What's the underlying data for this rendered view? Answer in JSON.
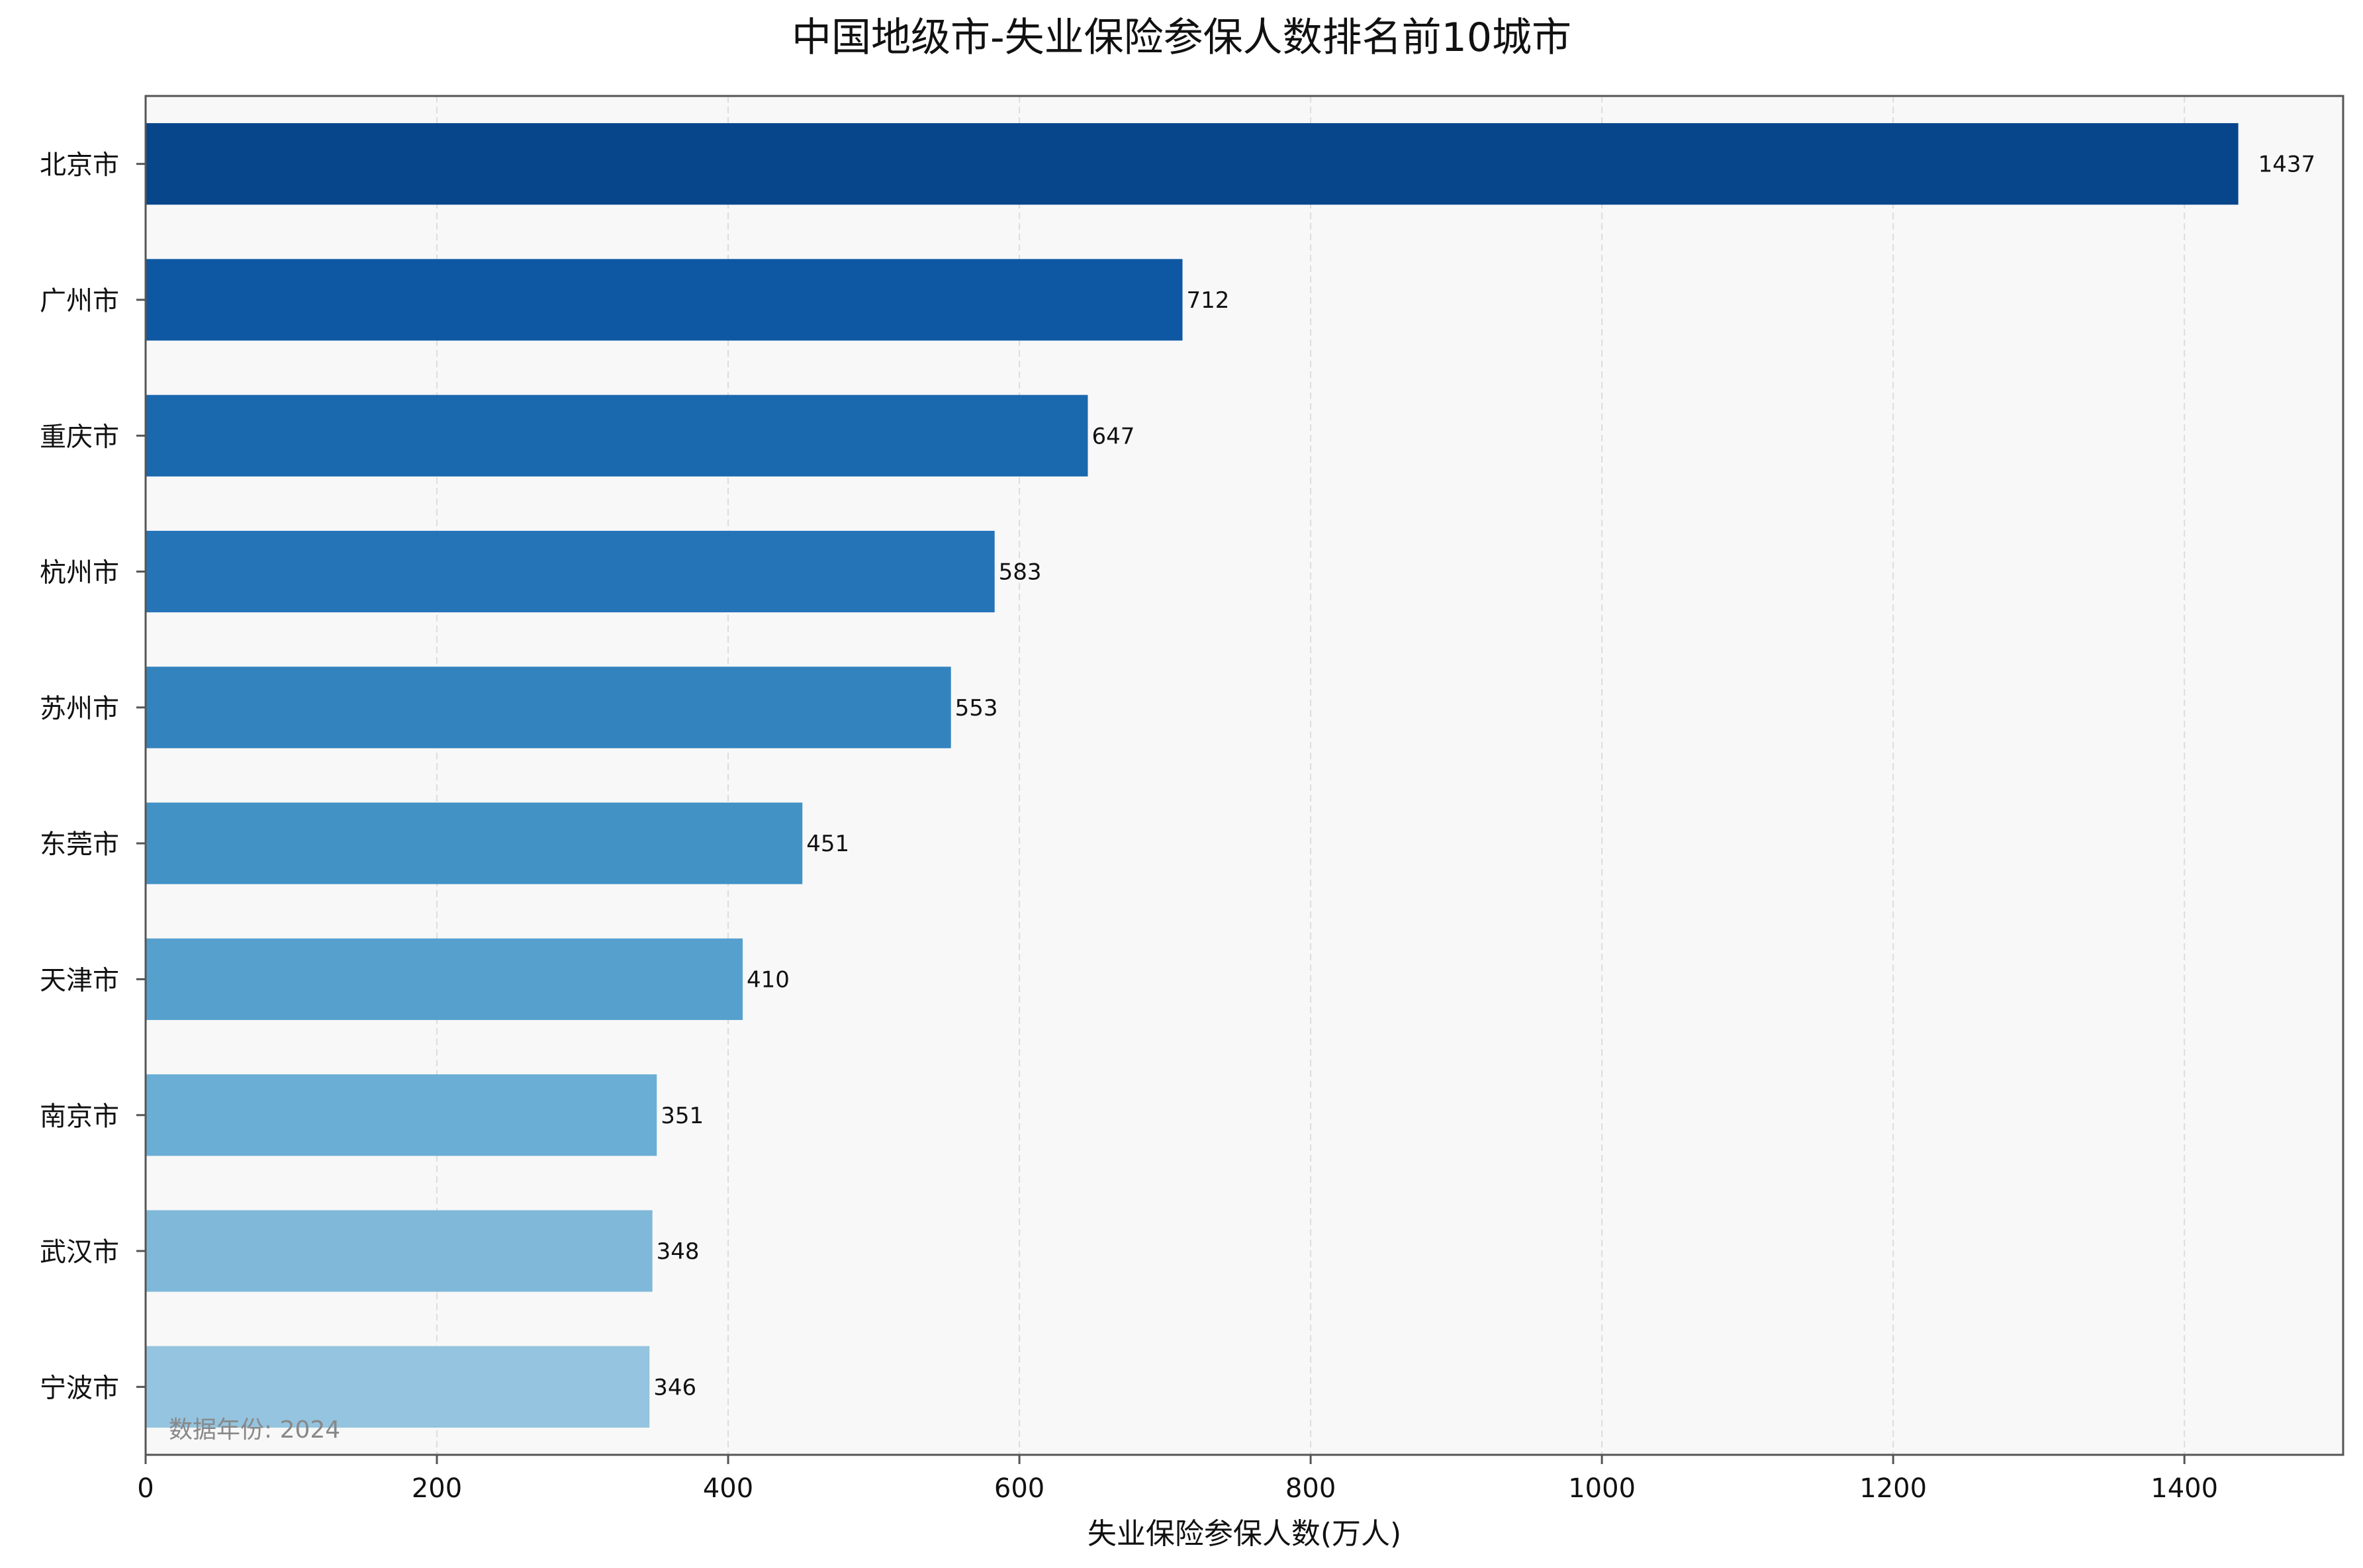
{
  "chart_data": {
    "type": "bar",
    "orientation": "horizontal",
    "title": "中国地级市-失业保险参保人数排名前10城市",
    "xlabel": "失业保险参保人数(万人)",
    "ylabel": "",
    "categories": [
      "北京市",
      "广州市",
      "重庆市",
      "杭州市",
      "苏州市",
      "东莞市",
      "天津市",
      "南京市",
      "武汉市",
      "宁波市"
    ],
    "values": [
      1437,
      712,
      647,
      583,
      553,
      451,
      410,
      351,
      348,
      346
    ],
    "value_labels": [
      "1437",
      "712",
      "647",
      "583",
      "553",
      "451",
      "410",
      "351",
      "348",
      "346"
    ],
    "xlim": [
      0,
      1509
    ],
    "xticks": [
      0,
      200,
      400,
      600,
      800,
      1000,
      1200,
      1400
    ],
    "xtick_labels": [
      "0",
      "200",
      "400",
      "600",
      "800",
      "1000",
      "1200",
      "1400"
    ],
    "grid": "vertical dashed",
    "legend": "none",
    "note": "数据年份: 2024",
    "colors": {
      "bars": [
        "#08468c",
        "#0e58a3",
        "#1a68ae",
        "#2574b7",
        "#3383be",
        "#4292c6",
        "#56a0ce",
        "#6aaed6",
        "#80b8da",
        "#94c4df"
      ],
      "plot_background": "#f8f8f8",
      "axis": "#555555",
      "grid": "#dddddd"
    }
  }
}
